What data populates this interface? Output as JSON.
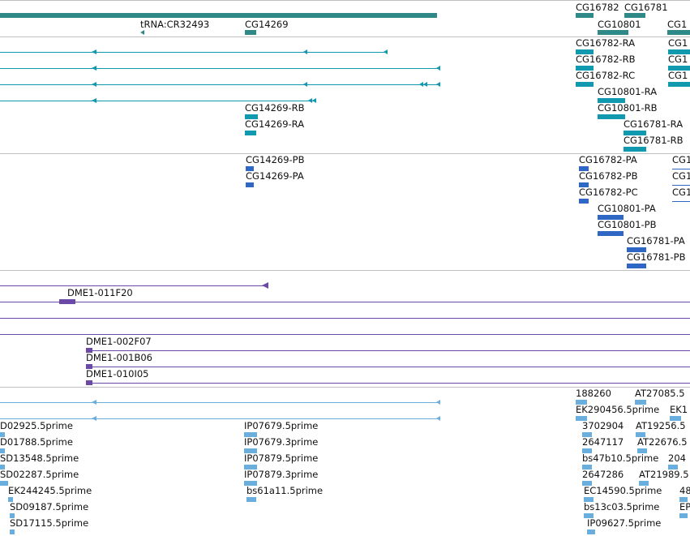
{
  "colors": {
    "gene": "#2f8a87",
    "mrna": "#1199b0",
    "protein": "#2f68c4",
    "clone": "#6a4aa6",
    "est": "#6aaede",
    "separator": "#bfbfbf"
  },
  "tracks": {
    "gene": [
      {
        "id": "g1",
        "label": "tRNA:CR32493"
      },
      {
        "id": "g2",
        "label": "CG14269"
      },
      {
        "id": "g3",
        "label": "CG16782"
      },
      {
        "id": "g4",
        "label": "CG16781"
      },
      {
        "id": "g5",
        "label": "CG10801"
      },
      {
        "id": "g6",
        "label": "CG1"
      }
    ],
    "mrna": [
      {
        "id": "m1",
        "label": "CG16782-RA"
      },
      {
        "id": "m2",
        "label": "CG16782-RB"
      },
      {
        "id": "m3",
        "label": "CG16782-RC"
      },
      {
        "id": "m4",
        "label": "CG10801-RA"
      },
      {
        "id": "m5",
        "label": "CG10801-RB"
      },
      {
        "id": "m6",
        "label": "CG16781-RA"
      },
      {
        "id": "m7",
        "label": "CG16781-RB"
      },
      {
        "id": "m8",
        "label": "CG14269-RB"
      },
      {
        "id": "m9",
        "label": "CG14269-RA"
      },
      {
        "id": "m10",
        "label": "CG1"
      },
      {
        "id": "m11",
        "label": "CG1"
      },
      {
        "id": "m12",
        "label": "CG1"
      }
    ],
    "protein": [
      {
        "id": "p1",
        "label": "CG14269-PB"
      },
      {
        "id": "p2",
        "label": "CG14269-PA"
      },
      {
        "id": "p3",
        "label": "CG16782-PA"
      },
      {
        "id": "p4",
        "label": "CG16782-PB"
      },
      {
        "id": "p5",
        "label": "CG16782-PC"
      },
      {
        "id": "p6",
        "label": "CG10801-PA"
      },
      {
        "id": "p7",
        "label": "CG10801-PB"
      },
      {
        "id": "p8",
        "label": "CG16781-PA"
      },
      {
        "id": "p9",
        "label": "CG16781-PB"
      },
      {
        "id": "p10",
        "label": "CG1"
      },
      {
        "id": "p11",
        "label": "CG1"
      },
      {
        "id": "p12",
        "label": "CG1"
      }
    ],
    "clone": [
      {
        "id": "c1",
        "label": "DME1-011F20"
      },
      {
        "id": "c2",
        "label": "DME1-002F07"
      },
      {
        "id": "c3",
        "label": "DME1-001B06"
      },
      {
        "id": "c4",
        "label": "DME1-010I05"
      }
    ],
    "est": [
      {
        "id": "e1",
        "label": "D02925.5prime"
      },
      {
        "id": "e2",
        "label": "D01788.5prime"
      },
      {
        "id": "e3",
        "label": "SD13548.5prime"
      },
      {
        "id": "e4",
        "label": "SD02287.5prime"
      },
      {
        "id": "e5",
        "label": "EK244245.5prime"
      },
      {
        "id": "e6",
        "label": "SD09187.5prime"
      },
      {
        "id": "e7",
        "label": "SD17115.5prime"
      },
      {
        "id": "e8",
        "label": "IP07679.5prime"
      },
      {
        "id": "e9",
        "label": "IP07679.3prime"
      },
      {
        "id": "e10",
        "label": "IP07879.5prime"
      },
      {
        "id": "e11",
        "label": "IP07879.3prime"
      },
      {
        "id": "e12",
        "label": "bs61a11.5prime"
      },
      {
        "id": "e13",
        "label": "188260"
      },
      {
        "id": "e14",
        "label": "EK290456.5prime"
      },
      {
        "id": "e15",
        "label": "3702904"
      },
      {
        "id": "e16",
        "label": "2647117"
      },
      {
        "id": "e17",
        "label": "bs47b10.5prime"
      },
      {
        "id": "e18",
        "label": "2647286"
      },
      {
        "id": "e19",
        "label": "EC14590.5prime"
      },
      {
        "id": "e20",
        "label": "bs13c03.5prime"
      },
      {
        "id": "e21",
        "label": "IP09627.5prime"
      },
      {
        "id": "e22",
        "label": "AT27085.5"
      },
      {
        "id": "e23",
        "label": "EK1"
      },
      {
        "id": "e24",
        "label": "AT19256.5"
      },
      {
        "id": "e25",
        "label": "AT22676.5"
      },
      {
        "id": "e26",
        "label": "204"
      },
      {
        "id": "e27",
        "label": "AT21989.5"
      },
      {
        "id": "e28",
        "label": "48"
      },
      {
        "id": "e29",
        "label": "EP"
      }
    ]
  }
}
